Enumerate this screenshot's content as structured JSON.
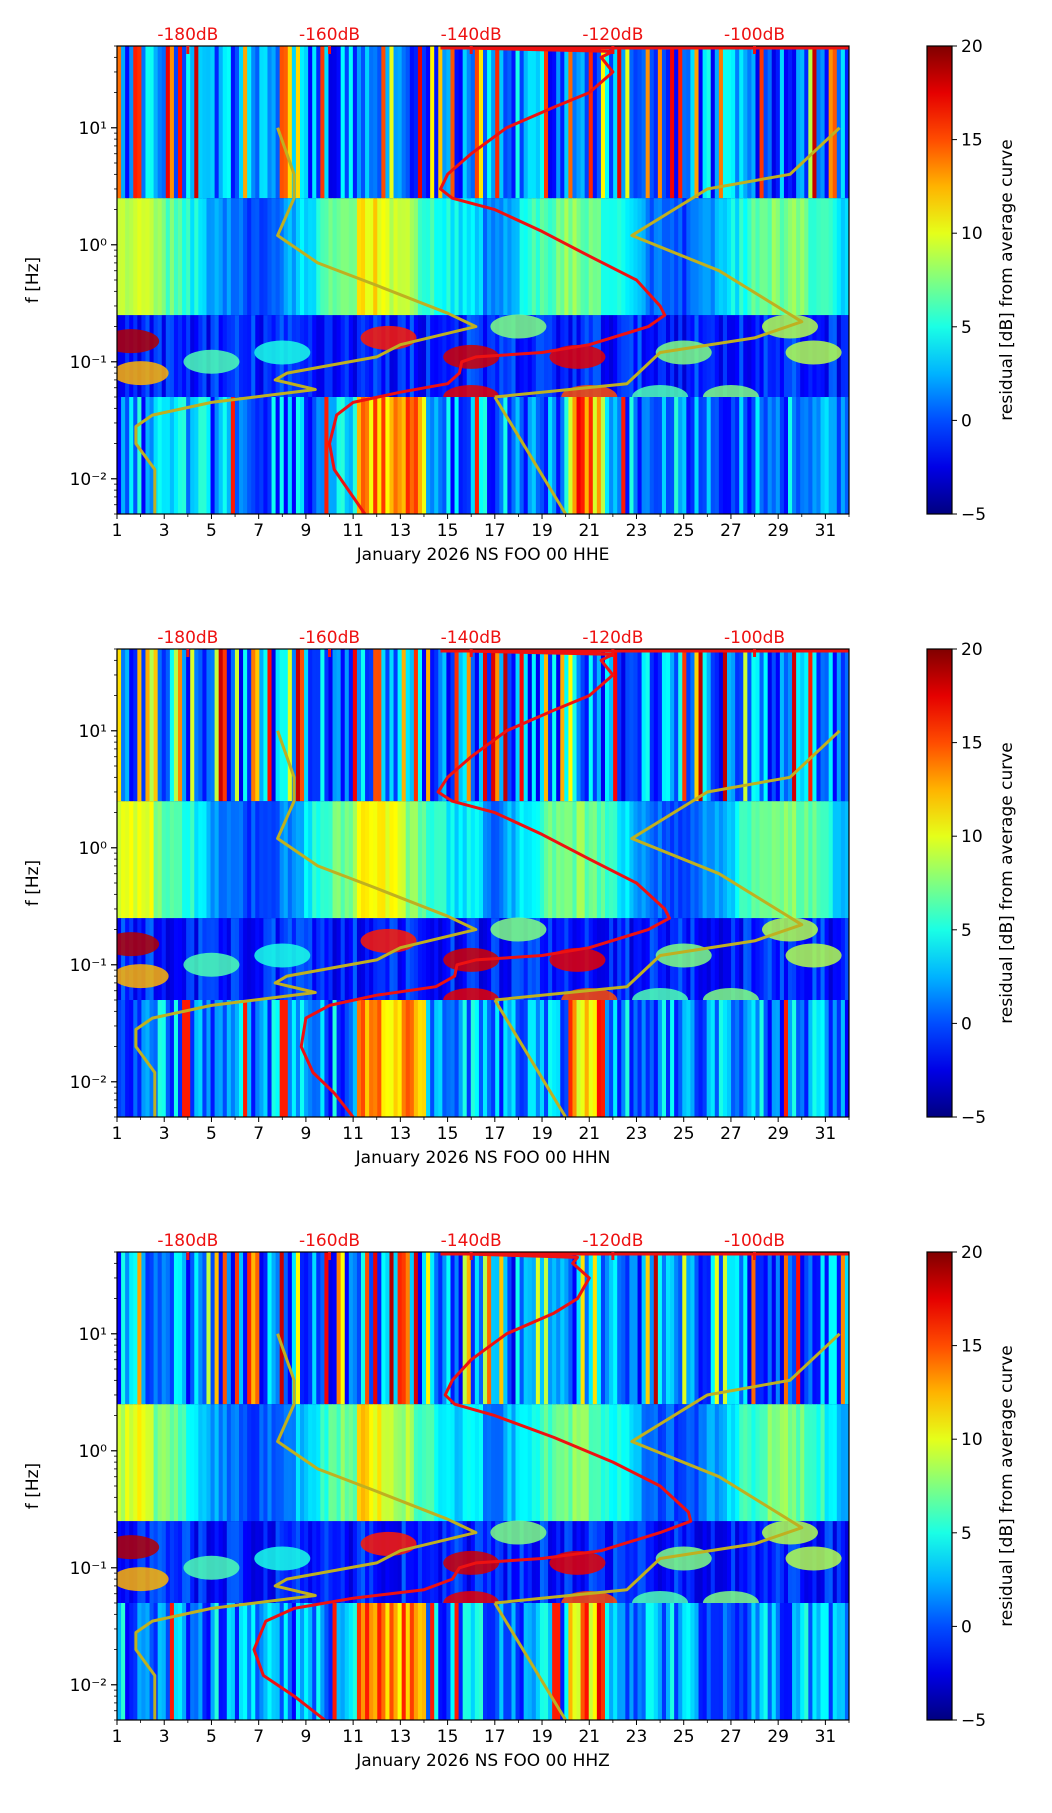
{
  "chart_data": [
    {
      "type": "heatmap",
      "title": "",
      "xlabel": "January 2026 NS FOO 00 HHE",
      "ylabel": "f [Hz]",
      "x_ticks": [
        "1",
        "3",
        "5",
        "7",
        "9",
        "11",
        "13",
        "15",
        "17",
        "19",
        "21",
        "23",
        "25",
        "27",
        "29",
        "31"
      ],
      "x_range": [
        1,
        32
      ],
      "y_scale": "log",
      "y_range": [
        0.005,
        50
      ],
      "y_ticks": [
        {
          "value": 0.01,
          "label": "10⁻²"
        },
        {
          "value": 0.1,
          "label": "10⁻¹"
        },
        {
          "value": 1,
          "label": "10⁰"
        },
        {
          "value": 10,
          "label": "10¹"
        }
      ],
      "top_axis_labels": [
        "-180dB",
        "-160dB",
        "-140dB",
        "-120dB",
        "-100dB"
      ],
      "top_axis_label_day": [
        4,
        10,
        16,
        22,
        28
      ],
      "colorbar": {
        "label": "residual [dB] from average curve",
        "range": [
          -5,
          20
        ],
        "ticks": [
          "20",
          "15",
          "10",
          "5",
          "0",
          "−5"
        ]
      },
      "series": [
        {
          "name": "mean PSD (red)",
          "color": "#ee1111",
          "points": [
            [
              14.7,
              50
            ],
            [
              16,
              48
            ],
            [
              22,
              45
            ],
            [
              21.5,
              40
            ],
            [
              22,
              30
            ],
            [
              21,
              20
            ],
            [
              19.5,
              15
            ],
            [
              17.5,
              10
            ],
            [
              16,
              6
            ],
            [
              15,
              4
            ],
            [
              14.7,
              3
            ],
            [
              15.2,
              2.5
            ],
            [
              17,
              2
            ],
            [
              19,
              1.3
            ],
            [
              21,
              0.8
            ],
            [
              23,
              0.5
            ],
            [
              24,
              0.3
            ],
            [
              24.2,
              0.25
            ],
            [
              23.5,
              0.2
            ],
            [
              21,
              0.14
            ],
            [
              19,
              0.12
            ],
            [
              16.2,
              0.11
            ],
            [
              15.6,
              0.1
            ],
            [
              15.5,
              0.08
            ],
            [
              15,
              0.065
            ],
            [
              13,
              0.055
            ],
            [
              11,
              0.045
            ],
            [
              10.3,
              0.035
            ],
            [
              10,
              0.02
            ],
            [
              10.2,
              0.012
            ],
            [
              10.8,
              0.008
            ],
            [
              11.5,
              0.005
            ]
          ]
        },
        {
          "name": "reference model (olive)",
          "color": "#bfb020",
          "points": [
            [
              2.6,
              0.005
            ],
            [
              2.6,
              0.012
            ],
            [
              1.8,
              0.02
            ],
            [
              1.8,
              0.028
            ],
            [
              2.5,
              0.035
            ],
            [
              5,
              0.045
            ],
            [
              9.4,
              0.058
            ],
            [
              7.7,
              0.07
            ],
            [
              8.2,
              0.08
            ],
            [
              9.6,
              0.09
            ],
            [
              12,
              0.11
            ],
            [
              13,
              0.14
            ],
            [
              16.2,
              0.2
            ],
            [
              15,
              0.26
            ],
            [
              12,
              0.45
            ],
            [
              9.5,
              0.7
            ],
            [
              7.8,
              1.2
            ],
            [
              8.5,
              2.5
            ],
            [
              8.5,
              4
            ],
            [
              7.8,
              10
            ]
          ]
        },
        {
          "name": "reference model upper (olive)",
          "color": "#bfb020",
          "points": [
            [
              17,
              0.05
            ],
            [
              20,
              0.005
            ]
          ]
        },
        {
          "name": "reference model right (olive)",
          "color": "#bfb020",
          "points": [
            [
              17,
              0.05
            ],
            [
              22.6,
              0.065
            ],
            [
              24,
              0.12
            ],
            [
              28,
              0.16
            ],
            [
              30,
              0.22
            ],
            [
              26.5,
              0.6
            ],
            [
              22.8,
              1.2
            ],
            [
              26,
              3
            ],
            [
              29.5,
              4
            ],
            [
              31.6,
              10
            ]
          ]
        }
      ]
    },
    {
      "type": "heatmap",
      "title": "",
      "xlabel": "January 2026 NS FOO 00 HHN",
      "ylabel": "f [Hz]",
      "x_ticks": [
        "1",
        "3",
        "5",
        "7",
        "9",
        "11",
        "13",
        "15",
        "17",
        "19",
        "21",
        "23",
        "25",
        "27",
        "29",
        "31"
      ],
      "x_range": [
        1,
        32
      ],
      "y_scale": "log",
      "y_range": [
        0.005,
        50
      ],
      "y_ticks": [
        {
          "value": 0.01,
          "label": "10⁻²"
        },
        {
          "value": 0.1,
          "label": "10⁻¹"
        },
        {
          "value": 1,
          "label": "10⁰"
        },
        {
          "value": 10,
          "label": "10¹"
        }
      ],
      "top_axis_labels": [
        "-180dB",
        "-160dB",
        "-140dB",
        "-120dB",
        "-100dB"
      ],
      "top_axis_label_day": [
        4,
        10,
        16,
        22,
        28
      ],
      "colorbar": {
        "label": "residual [dB] from average curve",
        "range": [
          -5,
          20
        ],
        "ticks": [
          "20",
          "15",
          "10",
          "5",
          "0",
          "−5"
        ]
      },
      "series": [
        {
          "name": "mean PSD (red)",
          "color": "#ee1111",
          "points": [
            [
              14.7,
              50
            ],
            [
              16,
              48
            ],
            [
              22,
              45
            ],
            [
              21.5,
              40
            ],
            [
              22,
              30
            ],
            [
              21,
              20
            ],
            [
              19.5,
              15
            ],
            [
              17.5,
              10
            ],
            [
              16,
              6
            ],
            [
              15,
              4
            ],
            [
              14.6,
              3
            ],
            [
              15.2,
              2.5
            ],
            [
              17,
              2
            ],
            [
              19,
              1.3
            ],
            [
              21,
              0.8
            ],
            [
              23,
              0.5
            ],
            [
              24.2,
              0.3
            ],
            [
              24.4,
              0.25
            ],
            [
              23.5,
              0.2
            ],
            [
              21,
              0.14
            ],
            [
              19,
              0.12
            ],
            [
              16.2,
              0.11
            ],
            [
              15.4,
              0.1
            ],
            [
              15.3,
              0.08
            ],
            [
              14.5,
              0.065
            ],
            [
              12,
              0.055
            ],
            [
              10,
              0.045
            ],
            [
              9,
              0.035
            ],
            [
              8.8,
              0.02
            ],
            [
              9.3,
              0.012
            ],
            [
              10.2,
              0.008
            ],
            [
              11,
              0.005
            ]
          ]
        },
        {
          "name": "reference model (olive)",
          "color": "#bfb020",
          "points": [
            [
              2.6,
              0.005
            ],
            [
              2.6,
              0.012
            ],
            [
              1.8,
              0.02
            ],
            [
              1.8,
              0.028
            ],
            [
              2.5,
              0.035
            ],
            [
              5,
              0.045
            ],
            [
              9.4,
              0.058
            ],
            [
              7.7,
              0.07
            ],
            [
              8.2,
              0.08
            ],
            [
              9.6,
              0.09
            ],
            [
              12,
              0.11
            ],
            [
              13,
              0.14
            ],
            [
              16.2,
              0.2
            ],
            [
              15,
              0.26
            ],
            [
              12,
              0.45
            ],
            [
              9.5,
              0.7
            ],
            [
              7.8,
              1.2
            ],
            [
              8.5,
              2.5
            ],
            [
              8.5,
              4
            ],
            [
              7.8,
              10
            ]
          ]
        },
        {
          "name": "reference model upper (olive)",
          "color": "#bfb020",
          "points": [
            [
              17,
              0.05
            ],
            [
              20,
              0.005
            ]
          ]
        },
        {
          "name": "reference model right (olive)",
          "color": "#bfb020",
          "points": [
            [
              17,
              0.05
            ],
            [
              22.6,
              0.065
            ],
            [
              24,
              0.12
            ],
            [
              28,
              0.16
            ],
            [
              30,
              0.22
            ],
            [
              26.5,
              0.6
            ],
            [
              22.8,
              1.2
            ],
            [
              26,
              3
            ],
            [
              29.5,
              4
            ],
            [
              31.6,
              10
            ]
          ]
        }
      ]
    },
    {
      "type": "heatmap",
      "title": "",
      "xlabel": "January 2026 NS FOO 00 HHZ",
      "ylabel": "f [Hz]",
      "x_ticks": [
        "1",
        "3",
        "5",
        "7",
        "9",
        "11",
        "13",
        "15",
        "17",
        "19",
        "21",
        "23",
        "25",
        "27",
        "29",
        "31"
      ],
      "x_range": [
        1,
        32
      ],
      "y_scale": "log",
      "y_range": [
        0.005,
        50
      ],
      "y_ticks": [
        {
          "value": 0.01,
          "label": "10⁻²"
        },
        {
          "value": 0.1,
          "label": "10⁻¹"
        },
        {
          "value": 1,
          "label": "10⁰"
        },
        {
          "value": 10,
          "label": "10¹"
        }
      ],
      "top_axis_labels": [
        "-180dB",
        "-160dB",
        "-140dB",
        "-120dB",
        "-100dB"
      ],
      "top_axis_label_day": [
        4,
        10,
        16,
        22,
        28
      ],
      "colorbar": {
        "label": "residual [dB] from average curve",
        "range": [
          -5,
          20
        ],
        "ticks": [
          "20",
          "15",
          "10",
          "5",
          "0",
          "−5"
        ]
      },
      "series": [
        {
          "name": "mean PSD (red)",
          "color": "#ee1111",
          "points": [
            [
              14.8,
              50
            ],
            [
              16,
              48
            ],
            [
              20.5,
              45
            ],
            [
              20.3,
              40
            ],
            [
              21,
              30
            ],
            [
              20.5,
              20
            ],
            [
              19.5,
              15
            ],
            [
              17.5,
              10
            ],
            [
              16,
              6
            ],
            [
              15.2,
              4
            ],
            [
              14.9,
              3
            ],
            [
              15.3,
              2.5
            ],
            [
              17,
              2
            ],
            [
              19.5,
              1.3
            ],
            [
              22,
              0.8
            ],
            [
              24,
              0.5
            ],
            [
              25.2,
              0.3
            ],
            [
              25.3,
              0.25
            ],
            [
              24,
              0.2
            ],
            [
              21.5,
              0.14
            ],
            [
              19,
              0.12
            ],
            [
              16.2,
              0.11
            ],
            [
              15.5,
              0.1
            ],
            [
              15.2,
              0.08
            ],
            [
              14,
              0.065
            ],
            [
              11,
              0.055
            ],
            [
              8.5,
              0.045
            ],
            [
              7.3,
              0.035
            ],
            [
              6.8,
              0.02
            ],
            [
              7.2,
              0.012
            ],
            [
              8.5,
              0.008
            ],
            [
              9.8,
              0.005
            ]
          ]
        },
        {
          "name": "reference model (olive)",
          "color": "#bfb020",
          "points": [
            [
              2.6,
              0.005
            ],
            [
              2.6,
              0.012
            ],
            [
              1.8,
              0.02
            ],
            [
              1.8,
              0.028
            ],
            [
              2.5,
              0.035
            ],
            [
              5,
              0.045
            ],
            [
              9.4,
              0.058
            ],
            [
              7.7,
              0.07
            ],
            [
              8.2,
              0.08
            ],
            [
              9.6,
              0.09
            ],
            [
              12,
              0.11
            ],
            [
              13,
              0.14
            ],
            [
              16.2,
              0.2
            ],
            [
              15,
              0.26
            ],
            [
              12,
              0.45
            ],
            [
              9.5,
              0.7
            ],
            [
              7.8,
              1.2
            ],
            [
              8.5,
              2.5
            ],
            [
              8.5,
              4
            ],
            [
              7.8,
              10
            ]
          ]
        },
        {
          "name": "reference model upper (olive)",
          "color": "#bfb020",
          "points": [
            [
              17,
              0.05
            ],
            [
              20,
              0.005
            ]
          ]
        },
        {
          "name": "reference model right (olive)",
          "color": "#bfb020",
          "points": [
            [
              17,
              0.05
            ],
            [
              22.6,
              0.065
            ],
            [
              24,
              0.12
            ],
            [
              28,
              0.16
            ],
            [
              30,
              0.22
            ],
            [
              26.5,
              0.6
            ],
            [
              22.8,
              1.2
            ],
            [
              26,
              3
            ],
            [
              29.5,
              4
            ],
            [
              31.6,
              10
            ]
          ]
        }
      ]
    }
  ]
}
